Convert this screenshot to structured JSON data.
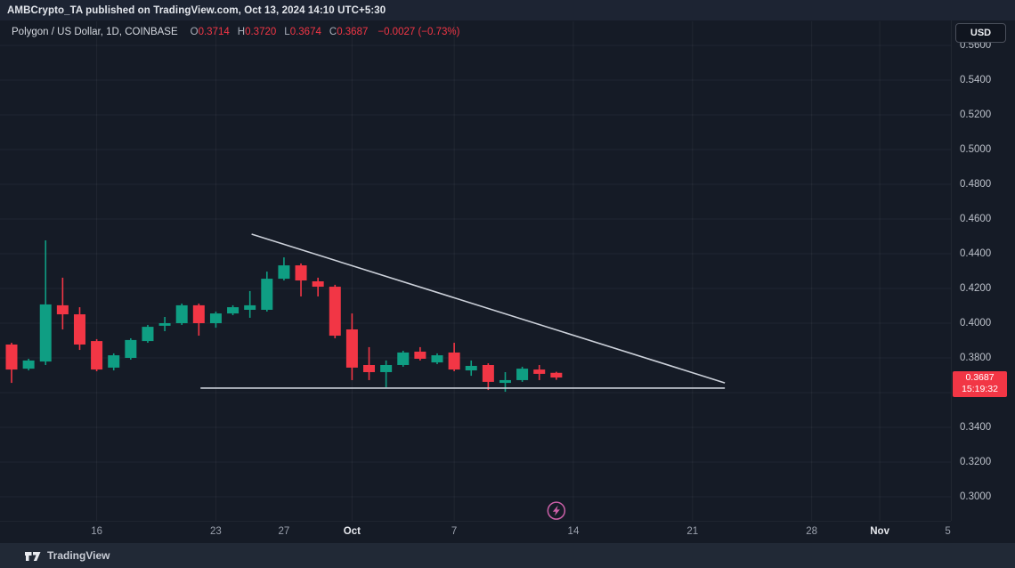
{
  "top_bar": {
    "text": "AMBCrypto_TA published on TradingView.com, Oct 13, 2024 14:10 UTC+5:30"
  },
  "legend": {
    "symbol": "Polygon / US Dollar, 1D, COINBASE",
    "o_label": "O",
    "o_value": "0.3714",
    "h_label": "H",
    "h_value": "0.3720",
    "l_label": "L",
    "l_value": "0.3674",
    "c_label": "C",
    "c_value": "0.3687",
    "change": "−0.0027 (−0.73%)"
  },
  "currency_button": {
    "label": "USD"
  },
  "price_badge": {
    "price": "0.3687",
    "countdown": "15:19:32"
  },
  "attribution": {
    "label": "TradingView"
  },
  "colors": {
    "up": "#0f9e83",
    "down": "#f23645",
    "line": "#ccd1da",
    "grid": "rgba(255,255,255,0.05)",
    "accent_pink": "#cd60a9",
    "badge_bg": "#f23645",
    "badge_text": "#ffffff"
  },
  "chart_data": {
    "type": "candlestick",
    "title": "Polygon / US Dollar, 1D, COINBASE",
    "ylabel": "USD",
    "ylim": [
      0.288,
      0.566
    ],
    "grid": true,
    "price_ticks": [
      "0.5600",
      "0.5400",
      "0.5200",
      "0.5000",
      "0.4800",
      "0.4600",
      "0.4400",
      "0.4200",
      "0.4000",
      "0.3800",
      "0.3600",
      "0.3400",
      "0.3200",
      "0.3000"
    ],
    "time_ticks": [
      {
        "label": "16",
        "index": 5,
        "grid": true,
        "major": false
      },
      {
        "label": "23",
        "index": 12,
        "grid": true,
        "major": false
      },
      {
        "label": "27",
        "index": 16,
        "grid": false,
        "major": false
      },
      {
        "label": "Oct",
        "index": 20,
        "grid": true,
        "major": true
      },
      {
        "label": "7",
        "index": 26,
        "grid": true,
        "major": false
      },
      {
        "label": "14",
        "index": 33,
        "grid": true,
        "major": false
      },
      {
        "label": "21",
        "index": 40,
        "grid": true,
        "major": false
      },
      {
        "label": "28",
        "index": 47,
        "grid": true,
        "major": false
      },
      {
        "label": "Nov",
        "index": 51,
        "grid": true,
        "major": true
      },
      {
        "label": "5",
        "index": 55,
        "grid": false,
        "major": false
      }
    ],
    "candles": [
      {
        "date": "Sep 11",
        "o": 0.3877,
        "h": 0.3887,
        "l": 0.3656,
        "c": 0.3733
      },
      {
        "date": "Sep 12",
        "o": 0.3738,
        "h": 0.3795,
        "l": 0.3728,
        "c": 0.3785
      },
      {
        "date": "Sep 13",
        "o": 0.3779,
        "h": 0.4477,
        "l": 0.3759,
        "c": 0.4108
      },
      {
        "date": "Sep 14",
        "o": 0.4103,
        "h": 0.4262,
        "l": 0.3964,
        "c": 0.4051
      },
      {
        "date": "Sep 15",
        "o": 0.4051,
        "h": 0.4092,
        "l": 0.3846,
        "c": 0.3877
      },
      {
        "date": "Sep 16",
        "o": 0.3897,
        "h": 0.3908,
        "l": 0.3723,
        "c": 0.3733
      },
      {
        "date": "Sep 17",
        "o": 0.3744,
        "h": 0.3826,
        "l": 0.3728,
        "c": 0.3815
      },
      {
        "date": "Sep 18",
        "o": 0.38,
        "h": 0.3913,
        "l": 0.379,
        "c": 0.3903
      },
      {
        "date": "Sep 19",
        "o": 0.3897,
        "h": 0.399,
        "l": 0.3887,
        "c": 0.3979
      },
      {
        "date": "Sep 20",
        "o": 0.3985,
        "h": 0.4036,
        "l": 0.3954,
        "c": 0.4
      },
      {
        "date": "Sep 21",
        "o": 0.4,
        "h": 0.4113,
        "l": 0.399,
        "c": 0.4103
      },
      {
        "date": "Sep 22",
        "o": 0.4103,
        "h": 0.4113,
        "l": 0.3928,
        "c": 0.4
      },
      {
        "date": "Sep 23",
        "o": 0.4,
        "h": 0.4067,
        "l": 0.3974,
        "c": 0.4056
      },
      {
        "date": "Sep 24",
        "o": 0.4056,
        "h": 0.4103,
        "l": 0.4046,
        "c": 0.4092
      },
      {
        "date": "Sep 25",
        "o": 0.4077,
        "h": 0.4185,
        "l": 0.4031,
        "c": 0.4103
      },
      {
        "date": "Sep 26",
        "o": 0.4077,
        "h": 0.4297,
        "l": 0.4067,
        "c": 0.4256
      },
      {
        "date": "Sep 27",
        "o": 0.4256,
        "h": 0.4379,
        "l": 0.4246,
        "c": 0.4333
      },
      {
        "date": "Sep 28",
        "o": 0.4333,
        "h": 0.4344,
        "l": 0.4154,
        "c": 0.4246
      },
      {
        "date": "Sep 29",
        "o": 0.4241,
        "h": 0.4262,
        "l": 0.4154,
        "c": 0.421
      },
      {
        "date": "Sep 30",
        "o": 0.421,
        "h": 0.4221,
        "l": 0.3913,
        "c": 0.3928
      },
      {
        "date": "Oct 1",
        "o": 0.3964,
        "h": 0.4056,
        "l": 0.3672,
        "c": 0.3744
      },
      {
        "date": "Oct 2",
        "o": 0.3759,
        "h": 0.3862,
        "l": 0.3672,
        "c": 0.3718
      },
      {
        "date": "Oct 3",
        "o": 0.3718,
        "h": 0.3785,
        "l": 0.3631,
        "c": 0.3759
      },
      {
        "date": "Oct 4",
        "o": 0.3759,
        "h": 0.3841,
        "l": 0.3749,
        "c": 0.3831
      },
      {
        "date": "Oct 5",
        "o": 0.3836,
        "h": 0.3862,
        "l": 0.3785,
        "c": 0.3795
      },
      {
        "date": "Oct 6",
        "o": 0.3774,
        "h": 0.3826,
        "l": 0.3764,
        "c": 0.3815
      },
      {
        "date": "Oct 7",
        "o": 0.3831,
        "h": 0.3887,
        "l": 0.3723,
        "c": 0.3733
      },
      {
        "date": "Oct 8",
        "o": 0.3728,
        "h": 0.3785,
        "l": 0.3697,
        "c": 0.3754
      },
      {
        "date": "Oct 9",
        "o": 0.3759,
        "h": 0.3769,
        "l": 0.3615,
        "c": 0.3662
      },
      {
        "date": "Oct 10",
        "o": 0.3656,
        "h": 0.3718,
        "l": 0.3605,
        "c": 0.3672
      },
      {
        "date": "Oct 11",
        "o": 0.3672,
        "h": 0.3749,
        "l": 0.3662,
        "c": 0.3738
      },
      {
        "date": "Oct 12",
        "o": 0.3733,
        "h": 0.3759,
        "l": 0.3672,
        "c": 0.3708
      },
      {
        "date": "Oct 13",
        "o": 0.3714,
        "h": 0.372,
        "l": 0.3674,
        "c": 0.3687
      }
    ],
    "annotations": {
      "trendline": {
        "from": {
          "index": 14.1,
          "price": 0.4513
        },
        "to": {
          "index": 41.9,
          "price": 0.3656
        }
      },
      "support_line": {
        "from_index": 11.1,
        "to_index": 41.9,
        "price": 0.3626
      },
      "marker": {
        "type": "lightning",
        "index": 32,
        "price": 0.292
      }
    }
  }
}
